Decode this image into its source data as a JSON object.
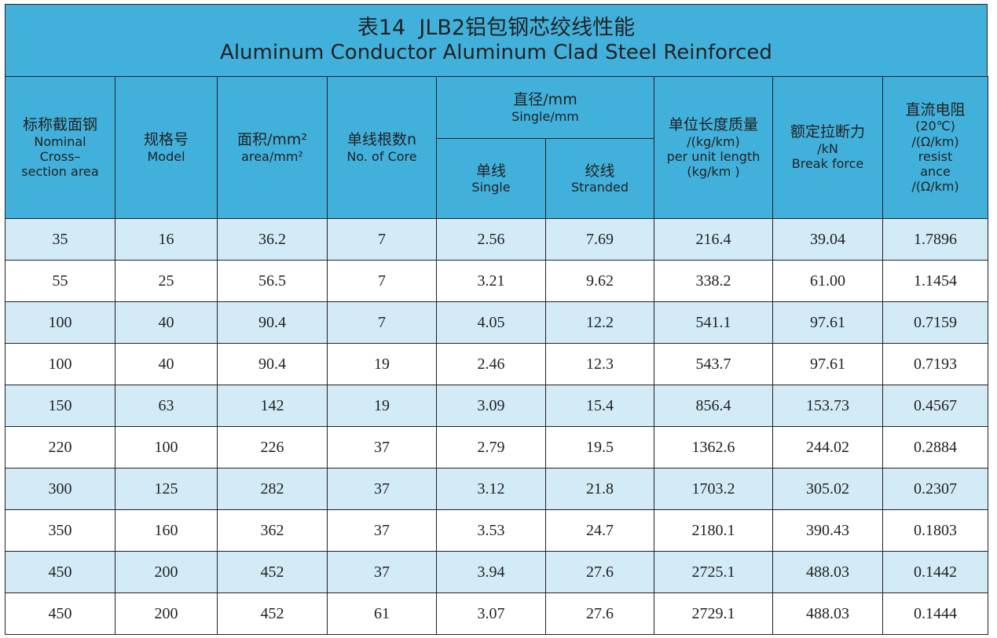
{
  "title": {
    "zh": "表14  JLB2铝包钢芯绞线性能",
    "en": "Aluminum Conductor Aluminum Clad Steel Reinforced"
  },
  "header": {
    "columns": [
      {
        "lines": [
          "标称截面钢",
          "Nominal",
          "Cross–",
          "section area"
        ]
      },
      {
        "lines": [
          "规格号",
          "Model"
        ]
      },
      {
        "lines": [
          "面积/mm²",
          "area/mm²"
        ]
      },
      {
        "lines": [
          "单线根数n",
          "No. of Core"
        ]
      },
      {
        "lines": [
          "直径/mm",
          "Single/mm"
        ],
        "sub": [
          {
            "lines": [
              "单线",
              "Single"
            ]
          },
          {
            "lines": [
              "绞线",
              "Stranded"
            ]
          }
        ]
      },
      {
        "lines": [
          "单位长度质量",
          "/(kg/km)",
          "per unit length",
          "(kg/km )"
        ]
      },
      {
        "lines": [
          "额定拉断力",
          "/kN",
          "Break force"
        ]
      },
      {
        "lines": [
          "直流电阻",
          "(20℃)",
          "/(Ω/km)",
          "resist",
          "ance",
          "/(Ω/km)"
        ]
      }
    ]
  },
  "table": {
    "rows": [
      [
        "35",
        "16",
        "36.2",
        "7",
        "2.56",
        "7.69",
        "216.4",
        "39.04",
        "1.7896"
      ],
      [
        "55",
        "25",
        "56.5",
        "7",
        "3.21",
        "9.62",
        "338.2",
        "61.00",
        "1.1454"
      ],
      [
        "100",
        "40",
        "90.4",
        "7",
        "4.05",
        "12.2",
        "541.1",
        "97.61",
        "0.7159"
      ],
      [
        "100",
        "40",
        "90.4",
        "19",
        "2.46",
        "12.3",
        "543.7",
        "97.61",
        "0.7193"
      ],
      [
        "150",
        "63",
        "142",
        "19",
        "3.09",
        "15.4",
        "856.4",
        "153.73",
        "0.4567"
      ],
      [
        "220",
        "100",
        "226",
        "37",
        "2.79",
        "19.5",
        "1362.6",
        "244.02",
        "0.2884"
      ],
      [
        "300",
        "125",
        "282",
        "37",
        "3.12",
        "21.8",
        "1703.2",
        "305.02",
        "0.2307"
      ],
      [
        "350",
        "160",
        "362",
        "37",
        "3.53",
        "24.7",
        "2180.1",
        "390.43",
        "0.1803"
      ],
      [
        "450",
        "200",
        "452",
        "37",
        "3.94",
        "27.6",
        "2725.1",
        "488.03",
        "0.1442"
      ],
      [
        "450",
        "200",
        "452",
        "61",
        "3.07",
        "27.6",
        "2729.1",
        "488.03",
        "0.1444"
      ]
    ]
  }
}
